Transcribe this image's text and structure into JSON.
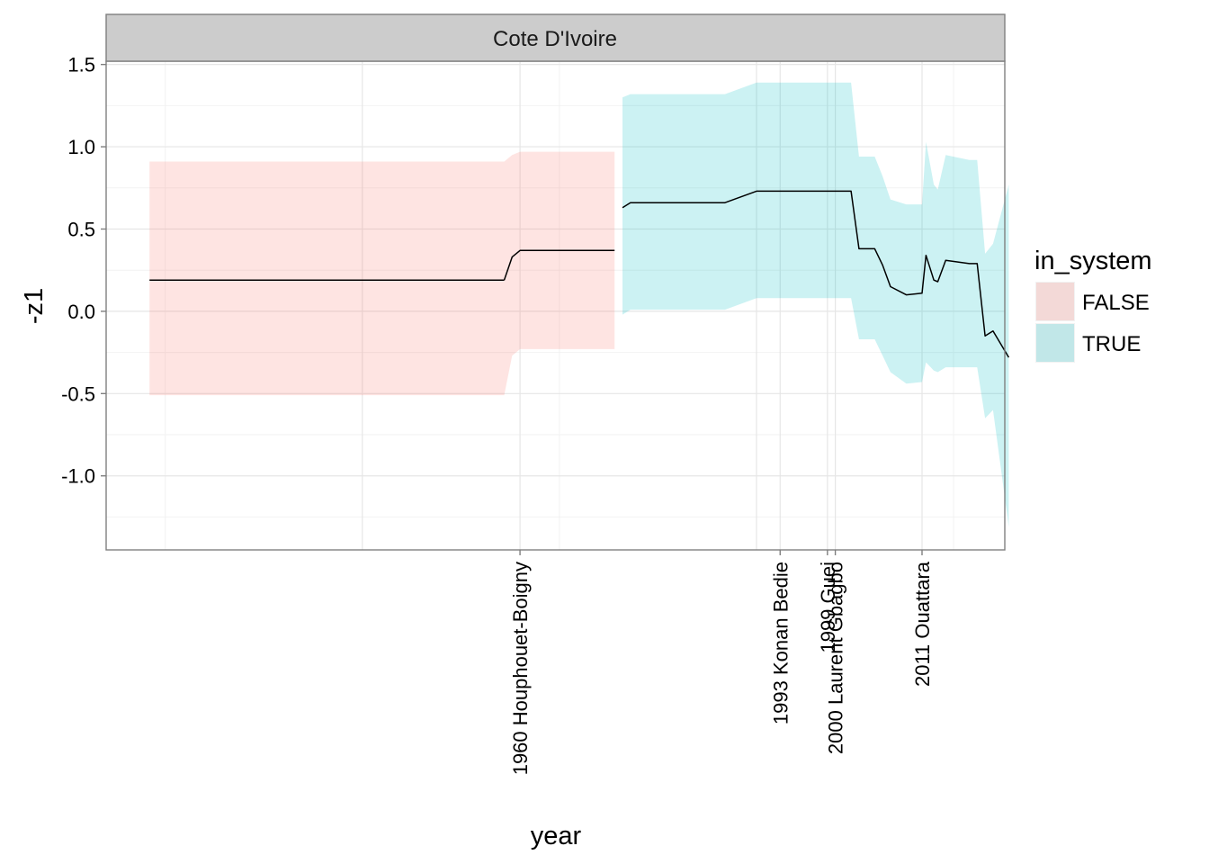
{
  "chart_data": {
    "type": "line",
    "facet_label": "Cote D'Ivoire",
    "xlabel": "year",
    "ylabel": "-z1",
    "xlim": [
      1907.5,
      2021.5
    ],
    "ylim": [
      -1.45,
      1.52
    ],
    "yticks": [
      1.5,
      1.0,
      0.5,
      0.0,
      -0.5,
      -1.0
    ],
    "ytick_labels": [
      "1.5",
      "1.0",
      "0.5",
      "0.0",
      "-0.5",
      "-1.0"
    ],
    "xticks": [
      1960,
      1993,
      1999,
      2000,
      2011
    ],
    "xtick_labels": [
      "1960 Houphouet-Boigny",
      "1993 Konan Bedie",
      "1999 Guei",
      "2000 Laurent Gbagbo",
      "2011 Ouattara"
    ],
    "x_grid_major": [
      1940,
      1990
    ],
    "x_grid_minor": [
      1915,
      1965,
      2015
    ],
    "grid": true,
    "legend": {
      "title": "in_system",
      "position": "right",
      "entries": [
        {
          "label": "FALSE",
          "color": "#F8766D"
        },
        {
          "label": "TRUE",
          "color": "#00BFC4"
        }
      ]
    },
    "series": [
      {
        "name": "FALSE",
        "fill": "#F8766D",
        "x": [
          1913,
          1958
        ],
        "y": [
          0.19,
          0.19
        ],
        "lower": [
          -0.51,
          -0.51
        ],
        "upper": [
          0.91,
          0.91
        ]
      },
      {
        "name": "FALSE",
        "fill": "#F8766D",
        "x": [
          1958,
          1959,
          1960,
          1972
        ],
        "y": [
          0.19,
          0.33,
          0.37,
          0.37
        ],
        "lower": [
          -0.51,
          -0.27,
          -0.23,
          -0.23
        ],
        "upper": [
          0.91,
          0.95,
          0.97,
          0.97
        ]
      },
      {
        "name": "TRUE",
        "fill": "#00BFC4",
        "x": [
          1973,
          1974,
          1985,
          1986,
          1990,
          2002,
          2003,
          2005,
          2006,
          2007,
          2009,
          2011,
          2011.5,
          2012.5,
          2013,
          2014,
          2017,
          2018,
          2019,
          2020,
          2022
        ],
        "y": [
          0.63,
          0.66,
          0.66,
          0.66,
          0.73,
          0.73,
          0.38,
          0.38,
          0.28,
          0.15,
          0.1,
          0.11,
          0.34,
          0.19,
          0.18,
          0.31,
          0.29,
          0.29,
          -0.15,
          -0.12,
          -0.28
        ],
        "lower": [
          -0.02,
          0.01,
          0.01,
          0.01,
          0.08,
          0.08,
          -0.17,
          -0.17,
          -0.27,
          -0.37,
          -0.44,
          -0.43,
          -0.31,
          -0.36,
          -0.37,
          -0.34,
          -0.34,
          -0.34,
          -0.65,
          -0.6,
          -1.31
        ],
        "upper": [
          1.3,
          1.32,
          1.32,
          1.32,
          1.39,
          1.39,
          0.94,
          0.94,
          0.82,
          0.68,
          0.65,
          0.65,
          1.03,
          0.77,
          0.74,
          0.95,
          0.92,
          0.92,
          0.35,
          0.41,
          0.77
        ]
      }
    ]
  }
}
